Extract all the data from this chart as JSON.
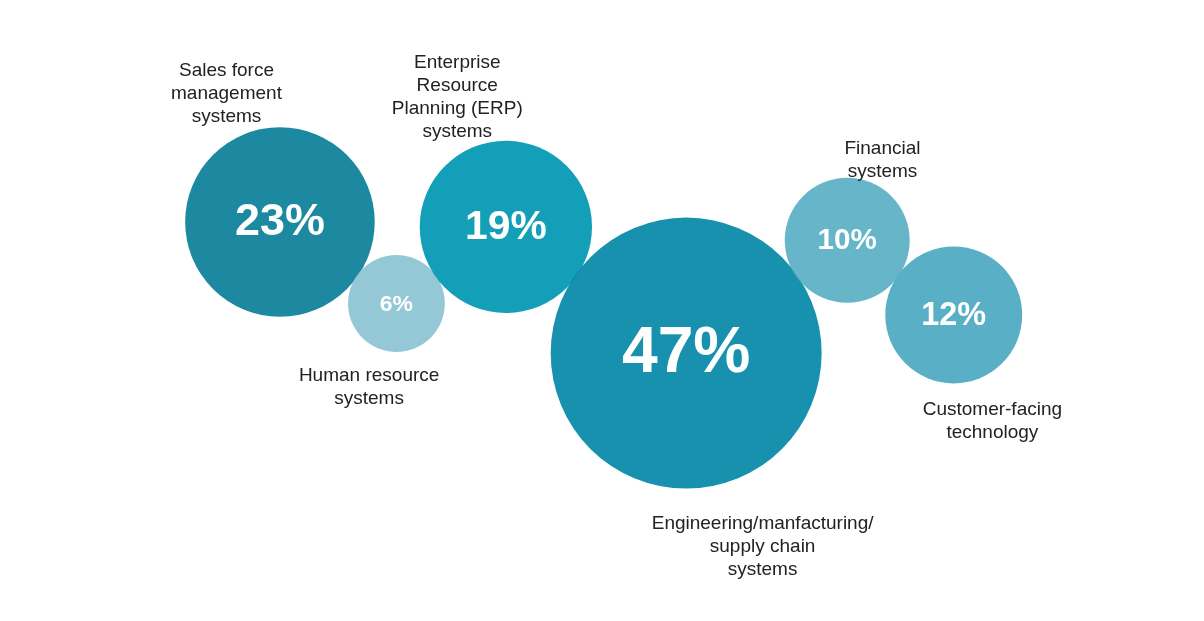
{
  "chart_data": {
    "type": "other",
    "categories": [
      "Sales force management systems",
      "Human resource systems",
      "Enterprise Resource Planning (ERP) systems",
      "Engineering/manfacturing/ supply chain systems",
      "Financial systems",
      "Customer-facing technology"
    ],
    "values": [
      23,
      6,
      19,
      47,
      10,
      12
    ],
    "value_labels": [
      "23%",
      "6%",
      "19%",
      "47%",
      "10%",
      "12%"
    ],
    "colors": [
      "#0a7f99",
      "#8cc3d4",
      "#0097b2",
      "#0388a6",
      "#5aafc4",
      "#4ba9c1"
    ]
  }
}
